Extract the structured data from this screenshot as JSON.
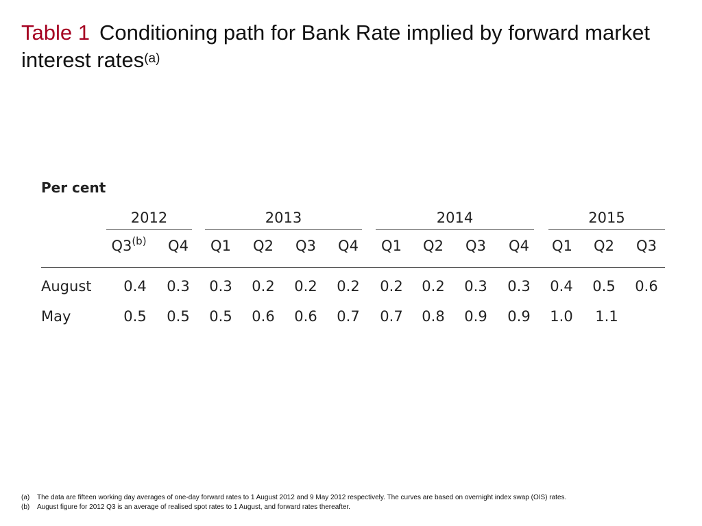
{
  "title": {
    "label": "Table 1",
    "text": "Conditioning path for Bank Rate implied by forward market interest rates",
    "note_ref": "(a)"
  },
  "table": {
    "unit": "Per cent",
    "years": [
      "2012",
      "2013",
      "2014",
      "2015"
    ],
    "quarters": [
      "Q3",
      "Q4",
      "Q1",
      "Q2",
      "Q3",
      "Q4",
      "Q1",
      "Q2",
      "Q3",
      "Q4",
      "Q1",
      "Q2",
      "Q3"
    ],
    "first_quarter_note_ref": "(b)",
    "rows": [
      {
        "label": "August",
        "values": [
          "0.4",
          "0.3",
          "0.3",
          "0.2",
          "0.2",
          "0.2",
          "0.2",
          "0.2",
          "0.3",
          "0.3",
          "0.4",
          "0.5",
          "0.6"
        ]
      },
      {
        "label": "May",
        "values": [
          "0.5",
          "0.5",
          "0.5",
          "0.6",
          "0.6",
          "0.7",
          "0.7",
          "0.8",
          "0.9",
          "0.9",
          "1.0",
          "1.1",
          ""
        ]
      }
    ]
  },
  "footnotes": [
    {
      "mark": "(a)",
      "text": "The data are fifteen working day averages of one-day forward rates to 1 August 2012 and 9 May 2012 respectively.  The curves are based on overnight index swap (OIS) rates."
    },
    {
      "mark": "(b)",
      "text": "August figure for 2012 Q3 is an average of realised spot rates to 1 August, and forward rates thereafter."
    }
  ],
  "colors": {
    "title_label": "#a50021",
    "text": "#1a1a1a",
    "rule": "#555555"
  }
}
